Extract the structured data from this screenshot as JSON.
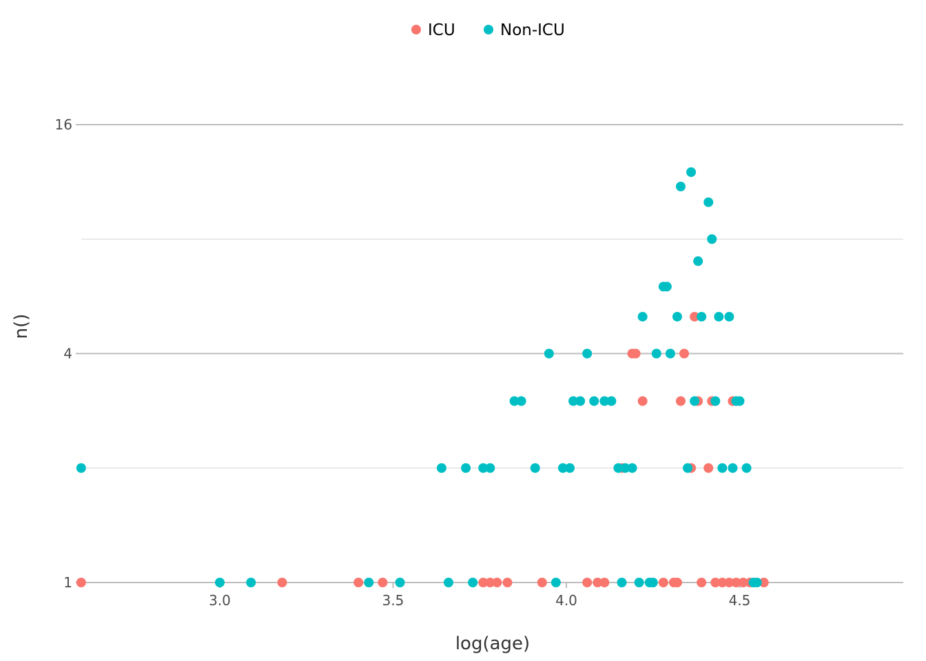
{
  "chart_data": {
    "type": "scatter",
    "xlabel": "log(age)",
    "ylabel": "n()",
    "x_ticks": [
      3.0,
      3.5,
      4.0,
      4.5
    ],
    "x_tick_labels": [
      "3.0",
      "3.5",
      "4.0",
      "4.5"
    ],
    "xlim": [
      2.6,
      4.97
    ],
    "y_scale": "log2",
    "y_ticks": [
      1,
      4,
      16
    ],
    "y_tick_labels": [
      "1",
      "4",
      "16"
    ],
    "y_minor_ticks": [
      2,
      8
    ],
    "ylim": [
      1,
      30
    ],
    "grid": true,
    "legend_position": "top",
    "series": [
      {
        "name": "ICU",
        "color": "#F8766D",
        "points": [
          [
            2.6,
            1
          ],
          [
            3.18,
            1
          ],
          [
            3.4,
            1
          ],
          [
            3.47,
            1
          ],
          [
            3.76,
            1
          ],
          [
            3.78,
            1
          ],
          [
            3.8,
            1
          ],
          [
            3.83,
            1
          ],
          [
            3.93,
            1
          ],
          [
            4.06,
            1
          ],
          [
            4.09,
            1
          ],
          [
            4.11,
            1
          ],
          [
            4.28,
            1
          ],
          [
            4.31,
            1
          ],
          [
            4.32,
            1
          ],
          [
            4.39,
            1
          ],
          [
            4.43,
            1
          ],
          [
            4.45,
            1
          ],
          [
            4.47,
            1
          ],
          [
            4.49,
            1
          ],
          [
            4.51,
            1
          ],
          [
            4.53,
            1
          ],
          [
            4.57,
            1
          ],
          [
            4.16,
            2
          ],
          [
            4.36,
            2
          ],
          [
            4.41,
            2
          ],
          [
            4.22,
            3
          ],
          [
            4.33,
            3
          ],
          [
            4.38,
            3
          ],
          [
            4.42,
            3
          ],
          [
            4.48,
            3
          ],
          [
            4.19,
            4
          ],
          [
            4.2,
            4
          ],
          [
            4.34,
            4
          ],
          [
            4.37,
            5
          ]
        ]
      },
      {
        "name": "Non-ICU",
        "color": "#00BFC4",
        "points": [
          [
            3.0,
            1
          ],
          [
            3.09,
            1
          ],
          [
            3.43,
            1
          ],
          [
            3.52,
            1
          ],
          [
            3.66,
            1
          ],
          [
            3.73,
            1
          ],
          [
            3.97,
            1
          ],
          [
            4.16,
            1
          ],
          [
            4.21,
            1
          ],
          [
            4.24,
            1
          ],
          [
            4.25,
            1
          ],
          [
            4.54,
            1
          ],
          [
            4.55,
            1
          ],
          [
            2.6,
            2
          ],
          [
            3.64,
            2
          ],
          [
            3.71,
            2
          ],
          [
            3.76,
            2
          ],
          [
            3.78,
            2
          ],
          [
            3.91,
            2
          ],
          [
            3.99,
            2
          ],
          [
            4.01,
            2
          ],
          [
            4.15,
            2
          ],
          [
            4.17,
            2
          ],
          [
            4.19,
            2
          ],
          [
            4.35,
            2
          ],
          [
            4.45,
            2
          ],
          [
            4.48,
            2
          ],
          [
            4.52,
            2
          ],
          [
            3.85,
            3
          ],
          [
            3.87,
            3
          ],
          [
            4.02,
            3
          ],
          [
            4.04,
            3
          ],
          [
            4.08,
            3
          ],
          [
            4.11,
            3
          ],
          [
            4.13,
            3
          ],
          [
            4.37,
            3
          ],
          [
            4.43,
            3
          ],
          [
            4.49,
            3
          ],
          [
            4.5,
            3
          ],
          [
            3.95,
            4
          ],
          [
            4.06,
            4
          ],
          [
            4.26,
            4
          ],
          [
            4.3,
            4
          ],
          [
            4.22,
            5
          ],
          [
            4.32,
            5
          ],
          [
            4.39,
            5
          ],
          [
            4.44,
            5
          ],
          [
            4.47,
            5
          ],
          [
            4.28,
            6
          ],
          [
            4.29,
            6
          ],
          [
            4.38,
            7
          ],
          [
            4.42,
            8
          ],
          [
            4.41,
            10
          ],
          [
            4.33,
            11
          ],
          [
            4.36,
            12
          ]
        ]
      }
    ]
  }
}
